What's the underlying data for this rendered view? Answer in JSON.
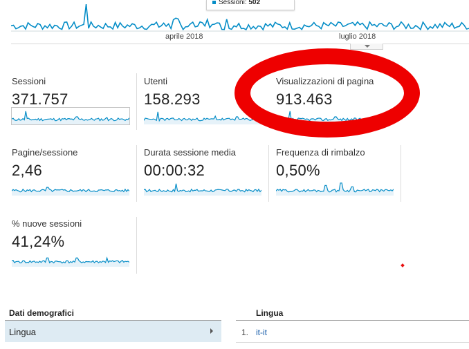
{
  "overview_chart": {
    "x_labels": [
      "aprile 2018",
      "luglio 2018"
    ],
    "tooltip_series": "Sessioni",
    "tooltip_value": "502",
    "line_color": "#058dc7"
  },
  "metrics": [
    {
      "label": "Sessioni",
      "value": "371.757",
      "selected": true
    },
    {
      "label": "Utenti",
      "value": "158.293",
      "selected": false
    },
    {
      "label": "Visualizzazioni di pagina",
      "value": "913.463",
      "selected": false
    },
    {
      "label": "Pagine/sessione",
      "value": "2,46",
      "selected": false
    },
    {
      "label": "Durata sessione media",
      "value": "00:00:32",
      "selected": false
    },
    {
      "label": "Frequenza di rimbalzo",
      "value": "0,50%",
      "selected": false
    },
    {
      "label": "% nuove sessioni",
      "value": "41,24%",
      "selected": false
    }
  ],
  "annotation": {
    "shape": "red-ellipse",
    "color": "#ee0000",
    "target": "Visualizzazioni di pagina"
  },
  "demographics": {
    "title": "Dati demografici",
    "selected_dimension": "Lingua"
  },
  "language_table": {
    "title": "Lingua",
    "rows": [
      {
        "rank": "1.",
        "value": "it-it"
      }
    ]
  },
  "colors": {
    "accent": "#058dc7",
    "selected_row_bg": "#deebf3",
    "link": "#1a5fab"
  }
}
